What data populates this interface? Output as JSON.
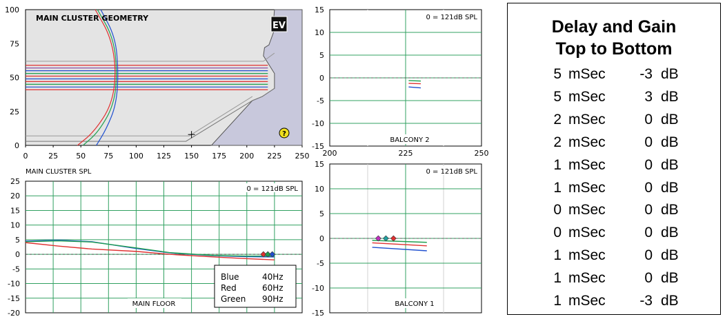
{
  "chart_data": [
    {
      "type": "line",
      "title": "MAIN CLUSTER GEOMETRY",
      "xlim": [
        0,
        250
      ],
      "ylim": [
        0,
        100
      ],
      "x_ticks": [
        "0",
        "25",
        "50",
        "75",
        "100",
        "125",
        "150",
        "175",
        "200",
        "225",
        "250"
      ],
      "y_ticks": [
        "100",
        "75",
        "50",
        "25",
        "0"
      ],
      "colors": {
        "background": "#e4e4e4",
        "stage": "#c8c8dc"
      },
      "icons": [
        "ev-logo-icon",
        "help-icon",
        "crosshair-icon"
      ],
      "logo_text": "EV",
      "help_text": "?",
      "ray_levels": [
        {
          "y": 59,
          "color": "#e03030"
        },
        {
          "y": 57,
          "color": "#8040a0"
        },
        {
          "y": 55,
          "color": "#2050d0"
        },
        {
          "y": 53,
          "color": "#20a050"
        },
        {
          "y": 51,
          "color": "#e03030"
        },
        {
          "y": 49,
          "color": "#2050d0"
        },
        {
          "y": 47,
          "color": "#e03030"
        },
        {
          "y": 45,
          "color": "#20a050"
        },
        {
          "y": 43,
          "color": "#2050d0"
        },
        {
          "y": 41,
          "color": "#e03030"
        }
      ],
      "ray_x_end": 219
    },
    {
      "type": "line",
      "title": "BALCONY 2",
      "annotation": "0 = 121dB SPL",
      "xlim": [
        200,
        250
      ],
      "ylim": [
        -15,
        15
      ],
      "x_ticks": [
        "200",
        "225",
        "250"
      ],
      "y_ticks": [
        "15",
        "10",
        "5",
        "0",
        "-5",
        "-10",
        "-15"
      ],
      "series": [
        {
          "color": "#20a050",
          "x": [
            226,
            230
          ],
          "y": [
            -0.6,
            -0.7
          ]
        },
        {
          "color": "#e03030",
          "x": [
            226,
            230
          ],
          "y": [
            -1.2,
            -1.3
          ]
        },
        {
          "color": "#2050d0",
          "x": [
            226,
            230
          ],
          "y": [
            -2.0,
            -2.2
          ]
        }
      ]
    },
    {
      "type": "line",
      "title": "MAIN CLUSTER SPL",
      "annotation": "0 = 121dB SPL",
      "footer": "MAIN FLOOR",
      "xlim": [
        0,
        250
      ],
      "ylim": [
        -20,
        25
      ],
      "y_ticks": [
        "25",
        "20",
        "15",
        "10",
        "5",
        "0",
        "-5",
        "-10",
        "-15",
        "-20"
      ],
      "legend": [
        {
          "label": "Blue",
          "value": "40Hz",
          "color": "#2050d0"
        },
        {
          "label": "Red",
          "value": "60Hz",
          "color": "#e03030"
        },
        {
          "label": "Green",
          "value": "90Hz",
          "color": "#20a050"
        }
      ],
      "series": [
        {
          "name": "Blue",
          "color": "#2050d0",
          "x": [
            0,
            30,
            60,
            100,
            130,
            170,
            200,
            225
          ],
          "y": [
            4.5,
            4.8,
            4.3,
            2.0,
            0.5,
            -0.5,
            -0.8,
            -0.9
          ]
        },
        {
          "name": "Green",
          "color": "#20a050",
          "x": [
            0,
            30,
            60,
            100,
            130,
            170,
            200,
            225
          ],
          "y": [
            4.3,
            4.6,
            4.2,
            2.2,
            0.6,
            -0.4,
            -0.6,
            -0.6
          ]
        },
        {
          "name": "Red",
          "color": "#e03030",
          "x": [
            0,
            30,
            60,
            100,
            130,
            170,
            200,
            225
          ],
          "y": [
            4.0,
            2.8,
            1.8,
            1.0,
            0.0,
            -0.9,
            -1.5,
            -1.9
          ]
        }
      ],
      "markers": [
        {
          "x": 215,
          "color": "#e03030"
        },
        {
          "x": 219,
          "color": "#20a050"
        },
        {
          "x": 223,
          "color": "#2050d0"
        }
      ]
    },
    {
      "type": "line",
      "title": "BALCONY 1",
      "annotation": "0 = 121dB SPL",
      "xlim": [
        200,
        250
      ],
      "ylim": [
        -15,
        15
      ],
      "y_ticks": [
        "15",
        "10",
        "5",
        "0",
        "-5",
        "-10",
        "-15"
      ],
      "series": [
        {
          "color": "#20a050",
          "x": [
            214,
            232
          ],
          "y": [
            -0.4,
            -0.8
          ]
        },
        {
          "color": "#e03030",
          "x": [
            214,
            232
          ],
          "y": [
            -0.9,
            -1.5
          ]
        },
        {
          "color": "#2050d0",
          "x": [
            214,
            232
          ],
          "y": [
            -1.8,
            -2.5
          ]
        }
      ],
      "markers": [
        {
          "x": 216,
          "color": "#c030c0"
        },
        {
          "x": 218.5,
          "color": "#20a0a0"
        },
        {
          "x": 221,
          "color": "#e03030"
        }
      ]
    }
  ],
  "table": {
    "title_lines": [
      "Delay and Gain",
      "Top to Bottom"
    ],
    "rows": [
      {
        "delay": "5",
        "delay_unit": "mSec",
        "gain": "-3",
        "gain_unit": "dB"
      },
      {
        "delay": "5",
        "delay_unit": "mSec",
        "gain": "3",
        "gain_unit": "dB"
      },
      {
        "delay": "2",
        "delay_unit": "mSec",
        "gain": "0",
        "gain_unit": "dB"
      },
      {
        "delay": "2",
        "delay_unit": "mSec",
        "gain": "0",
        "gain_unit": "dB"
      },
      {
        "delay": "1",
        "delay_unit": "mSec",
        "gain": "0",
        "gain_unit": "dB"
      },
      {
        "delay": "1",
        "delay_unit": "mSec",
        "gain": "0",
        "gain_unit": "dB"
      },
      {
        "delay": "0",
        "delay_unit": "mSec",
        "gain": "0",
        "gain_unit": "dB"
      },
      {
        "delay": "0",
        "delay_unit": "mSec",
        "gain": "0",
        "gain_unit": "dB"
      },
      {
        "delay": "1",
        "delay_unit": "mSec",
        "gain": "0",
        "gain_unit": "dB"
      },
      {
        "delay": "1",
        "delay_unit": "mSec",
        "gain": "0",
        "gain_unit": "dB"
      },
      {
        "delay": "1",
        "delay_unit": "mSec",
        "gain": "-3",
        "gain_unit": "dB"
      }
    ]
  }
}
